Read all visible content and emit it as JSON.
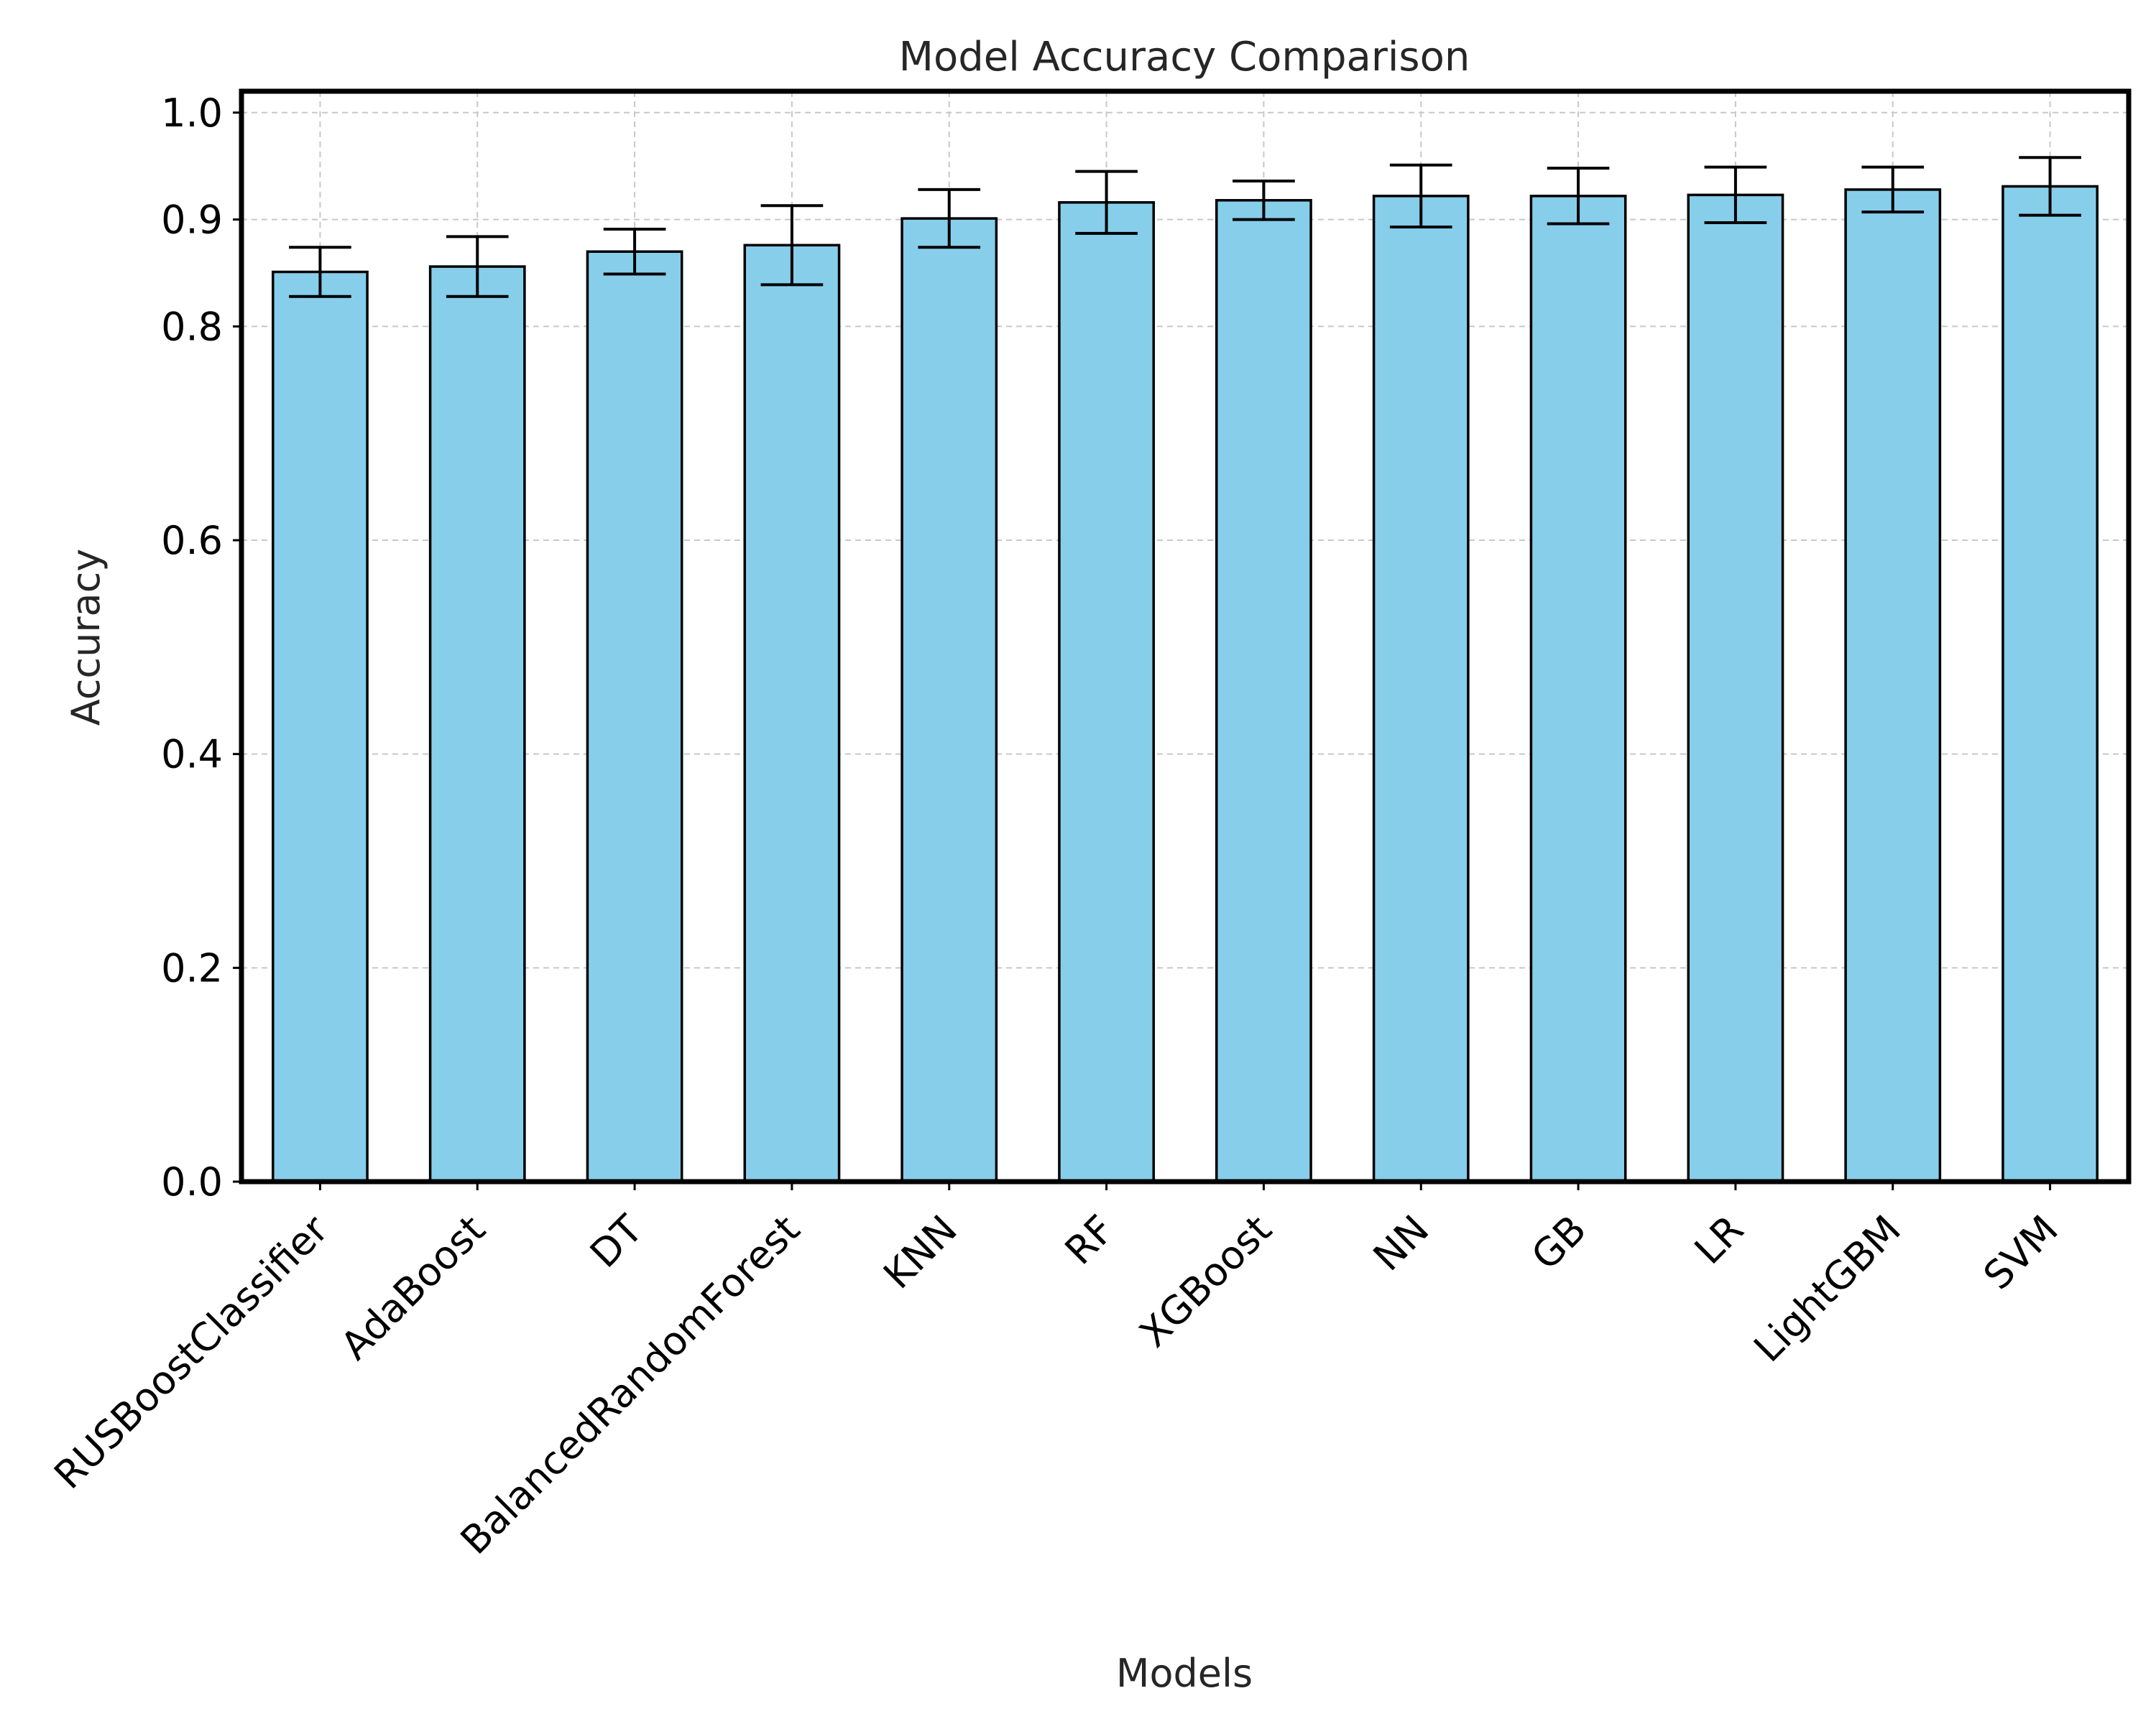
{
  "chart_data": {
    "type": "bar",
    "title": "Model Accuracy Comparison",
    "xlabel": "Models",
    "ylabel": "Accuracy",
    "categories": [
      "RUSBoostClassifier",
      "AdaBoost",
      "DT",
      "BalancedRandomForest",
      "KNN",
      "RF",
      "XGBoost",
      "NN",
      "GB",
      "LR",
      "LightGBM",
      "SVM"
    ],
    "values": [
      0.851,
      0.856,
      0.87,
      0.876,
      0.901,
      0.916,
      0.918,
      0.922,
      0.922,
      0.923,
      0.928,
      0.931
    ],
    "errors": [
      0.023,
      0.028,
      0.021,
      0.037,
      0.027,
      0.029,
      0.018,
      0.029,
      0.026,
      0.026,
      0.021,
      0.027
    ],
    "ylim": [
      0,
      1.02
    ],
    "yticks": [
      0.0,
      0.2,
      0.4,
      0.6,
      0.8,
      0.9,
      1.0
    ],
    "ytick_labels": [
      "0.0",
      "0.2",
      "0.4",
      "0.6",
      "0.8",
      "0.9",
      "1.0"
    ],
    "grid": true,
    "bar_color": "#87ceeb",
    "edge_color": "#000000"
  }
}
